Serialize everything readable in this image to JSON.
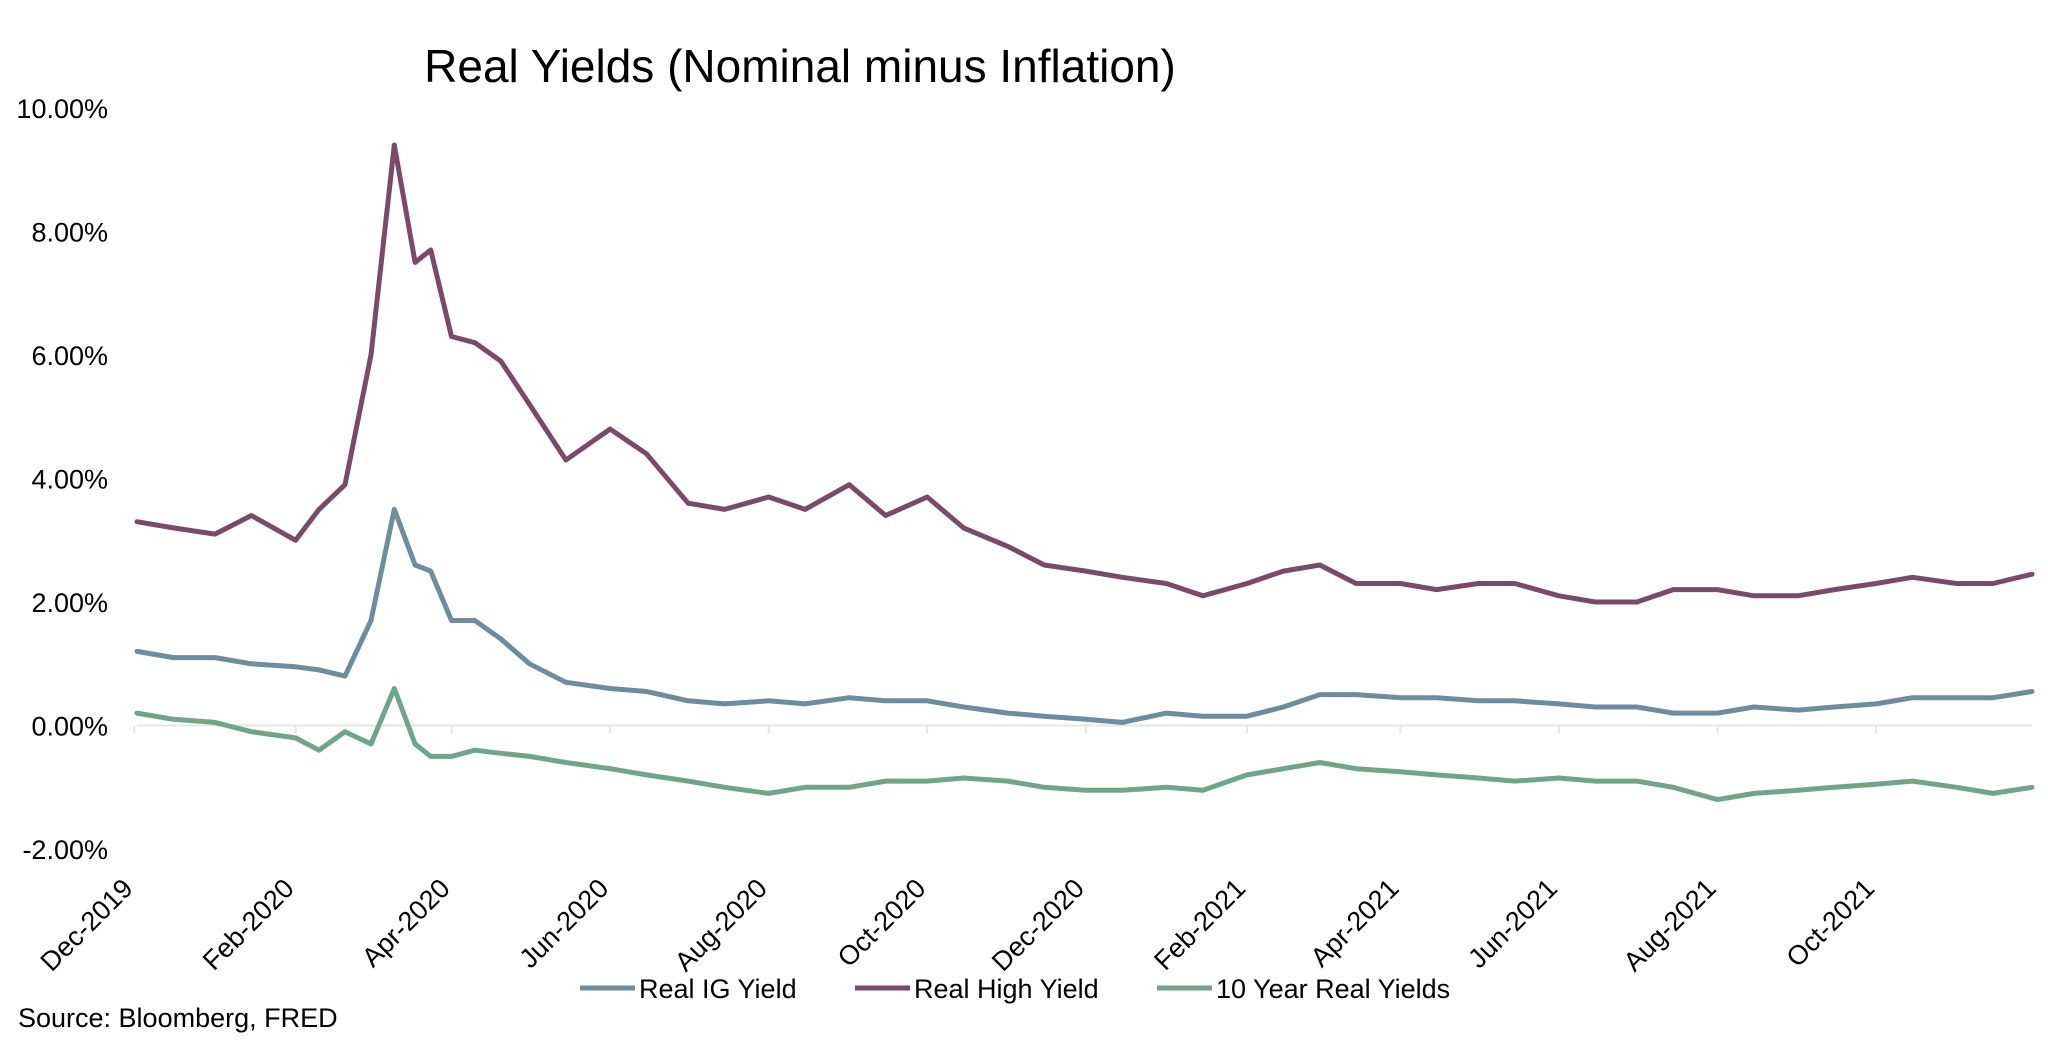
{
  "chart_data": {
    "type": "line",
    "title": "Real Yields (Nominal minus Inflation)",
    "xlabel": "",
    "ylabel": "",
    "ylim": [
      -2,
      10
    ],
    "xlim": [
      "2019-12-02",
      "2021-11-30"
    ],
    "grid": false,
    "legend_position": "bottom",
    "y_ticks": [
      "10.00%",
      "8.00%",
      "6.00%",
      "4.00%",
      "2.00%",
      "0.00%",
      "-2.00%"
    ],
    "y_tick_values": [
      10,
      8,
      6,
      4,
      2,
      0,
      -2
    ],
    "x_ticks": [
      "Dec-2019",
      "Feb-2020",
      "Apr-2020",
      "Jun-2020",
      "Aug-2020",
      "Oct-2020",
      "Dec-2020",
      "Feb-2021",
      "Apr-2021",
      "Jun-2021",
      "Aug-2021",
      "Oct-2021"
    ],
    "x_tick_dates": [
      "2019-12-01",
      "2020-02-01",
      "2020-04-01",
      "2020-06-01",
      "2020-08-01",
      "2020-10-01",
      "2020-12-01",
      "2021-02-01",
      "2021-04-01",
      "2021-06-01",
      "2021-08-01",
      "2021-10-01"
    ],
    "x": [
      "2019-12-02",
      "2019-12-16",
      "2020-01-01",
      "2020-01-15",
      "2020-02-01",
      "2020-02-10",
      "2020-02-20",
      "2020-03-01",
      "2020-03-10",
      "2020-03-18",
      "2020-03-24",
      "2020-04-01",
      "2020-04-10",
      "2020-04-20",
      "2020-05-01",
      "2020-05-15",
      "2020-06-01",
      "2020-06-15",
      "2020-07-01",
      "2020-07-15",
      "2020-08-01",
      "2020-08-15",
      "2020-09-01",
      "2020-09-15",
      "2020-10-01",
      "2020-10-15",
      "2020-11-01",
      "2020-11-15",
      "2020-12-01",
      "2020-12-15",
      "2021-01-01",
      "2021-01-15",
      "2021-02-01",
      "2021-02-15",
      "2021-03-01",
      "2021-03-15",
      "2021-04-01",
      "2021-04-15",
      "2021-05-01",
      "2021-05-15",
      "2021-06-01",
      "2021-06-15",
      "2021-07-01",
      "2021-07-15",
      "2021-08-01",
      "2021-08-15",
      "2021-09-01",
      "2021-09-15",
      "2021-10-01",
      "2021-10-15",
      "2021-11-01",
      "2021-11-15",
      "2021-11-30"
    ],
    "series": [
      {
        "name": "Real IG Yield",
        "color": "#6E8C9C",
        "values": [
          1.2,
          1.1,
          1.1,
          1.0,
          0.95,
          0.9,
          0.8,
          1.7,
          3.5,
          2.6,
          2.5,
          1.7,
          1.7,
          1.4,
          1.0,
          0.7,
          0.6,
          0.55,
          0.4,
          0.35,
          0.4,
          0.35,
          0.45,
          0.4,
          0.4,
          0.3,
          0.2,
          0.15,
          0.1,
          0.05,
          0.2,
          0.15,
          0.15,
          0.3,
          0.5,
          0.5,
          0.45,
          0.45,
          0.4,
          0.4,
          0.35,
          0.3,
          0.3,
          0.2,
          0.2,
          0.3,
          0.25,
          0.3,
          0.35,
          0.45,
          0.45,
          0.45,
          0.55
        ]
      },
      {
        "name": "Real High Yield",
        "color": "#7A4A68",
        "values": [
          3.3,
          3.2,
          3.1,
          3.4,
          3.0,
          3.5,
          3.9,
          6.0,
          9.4,
          7.5,
          7.7,
          6.3,
          6.2,
          5.9,
          5.2,
          4.3,
          4.8,
          4.4,
          3.6,
          3.5,
          3.7,
          3.5,
          3.9,
          3.4,
          3.7,
          3.2,
          2.9,
          2.6,
          2.5,
          2.4,
          2.3,
          2.1,
          2.3,
          2.5,
          2.6,
          2.3,
          2.3,
          2.2,
          2.3,
          2.3,
          2.1,
          2.0,
          2.0,
          2.2,
          2.2,
          2.1,
          2.1,
          2.2,
          2.3,
          2.4,
          2.3,
          2.3,
          2.45
        ]
      },
      {
        "name": "10 Year Real Yields",
        "color": "#6FA68A",
        "values": [
          0.2,
          0.1,
          0.05,
          -0.1,
          -0.2,
          -0.4,
          -0.1,
          -0.3,
          0.6,
          -0.3,
          -0.5,
          -0.5,
          -0.4,
          -0.45,
          -0.5,
          -0.6,
          -0.7,
          -0.8,
          -0.9,
          -1.0,
          -1.1,
          -1.0,
          -1.0,
          -0.9,
          -0.9,
          -0.85,
          -0.9,
          -1.0,
          -1.05,
          -1.05,
          -1.0,
          -1.05,
          -0.8,
          -0.7,
          -0.6,
          -0.7,
          -0.75,
          -0.8,
          -0.85,
          -0.9,
          -0.85,
          -0.9,
          -0.9,
          -1.0,
          -1.2,
          -1.1,
          -1.05,
          -1.0,
          -0.95,
          -0.9,
          -1.0,
          -1.1,
          -1.0
        ]
      }
    ]
  },
  "legend": {
    "items": [
      "Real IG Yield",
      "Real High Yield",
      "10 Year Real Yields"
    ]
  },
  "source": "Source: Bloomberg, FRED"
}
